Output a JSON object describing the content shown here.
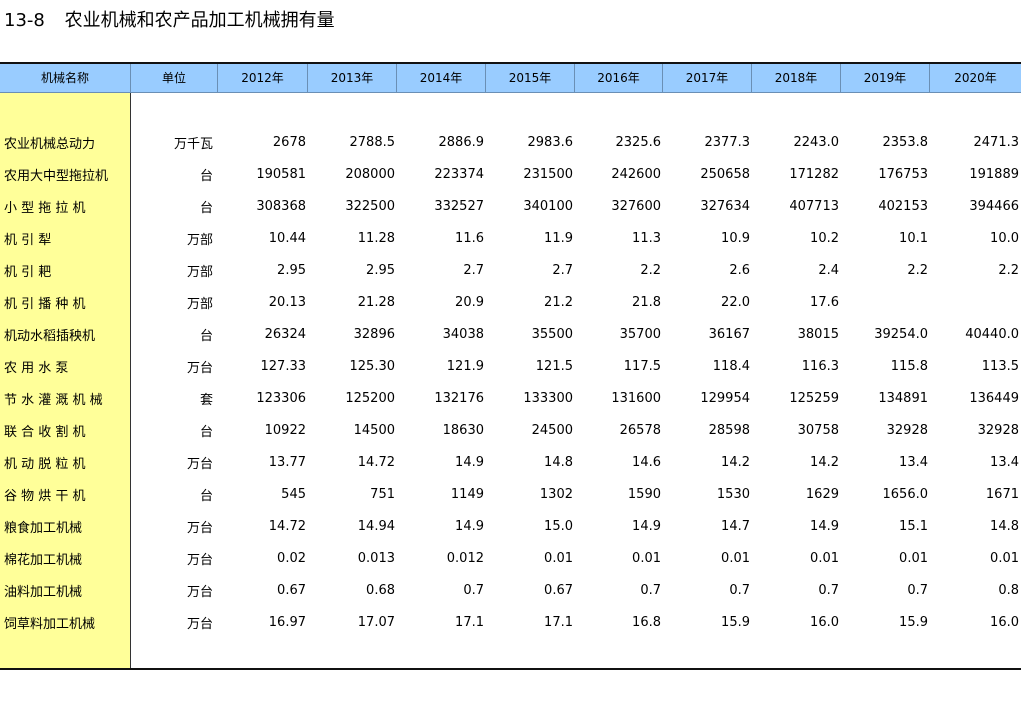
{
  "title": {
    "number": "13-8",
    "text": "农业机械和农产品加工机械拥有量"
  },
  "columns": [
    "机械名称",
    "单位",
    "2012年",
    "2013年",
    "2014年",
    "2015年",
    "2016年",
    "2017年",
    "2018年",
    "2019年",
    "2020年"
  ],
  "rows": [
    {
      "name": "农业机械总动力",
      "unit": "万千瓦",
      "values": [
        "2678",
        "2788.5",
        "2886.9",
        "2983.6",
        "2325.6",
        "2377.3",
        "2243.0",
        "2353.8",
        "2471.3"
      ]
    },
    {
      "name": "农用大中型拖拉机",
      "unit": "台",
      "values": [
        "190581",
        "208000",
        "223374",
        "231500",
        "242600",
        "250658",
        "171282",
        "176753",
        "191889"
      ]
    },
    {
      "name": "小 型 拖 拉 机",
      "unit": "台",
      "values": [
        "308368",
        "322500",
        "332527",
        "340100",
        "327600",
        "327634",
        "407713",
        "402153",
        "394466"
      ]
    },
    {
      "name": "机   引   犁",
      "unit": "万部",
      "values": [
        "10.44",
        "11.28",
        "11.6",
        "11.9",
        "11.3",
        "10.9",
        "10.2",
        "10.1",
        "10.0"
      ]
    },
    {
      "name": "机   引   耙",
      "unit": "万部",
      "values": [
        "2.95",
        "2.95",
        "2.7",
        "2.7",
        "2.2",
        "2.6",
        "2.4",
        "2.2",
        "2.2"
      ]
    },
    {
      "name": "机 引 播 种 机",
      "unit": "万部",
      "values": [
        "20.13",
        "21.28",
        "20.9",
        "21.2",
        "21.8",
        "22.0",
        "17.6",
        "",
        ""
      ]
    },
    {
      "name": "机动水稻插秧机",
      "unit": "台",
      "values": [
        "26324",
        "32896",
        "34038",
        "35500",
        "35700",
        "36167",
        "38015",
        "39254.0",
        "40440.0"
      ]
    },
    {
      "name": "农  用  水  泵",
      "unit": "万台",
      "values": [
        "127.33",
        "125.30",
        "121.9",
        "121.5",
        "117.5",
        "118.4",
        "116.3",
        "115.8",
        "113.5"
      ]
    },
    {
      "name": "节 水 灌 溉 机 械",
      "unit": "套",
      "values": [
        "123306",
        "125200",
        "132176",
        "133300",
        "131600",
        "129954",
        "125259",
        "134891",
        "136449"
      ]
    },
    {
      "name": "联 合 收 割 机",
      "unit": "台",
      "values": [
        "10922",
        "14500",
        "18630",
        "24500",
        "26578",
        "28598",
        "30758",
        "32928",
        "32928"
      ]
    },
    {
      "name": "机 动 脱 粒 机",
      "unit": "万台",
      "values": [
        "13.77",
        "14.72",
        "14.9",
        "14.8",
        "14.6",
        "14.2",
        "14.2",
        "13.4",
        "13.4"
      ]
    },
    {
      "name": "谷 物 烘 干 机",
      "unit": "台",
      "values": [
        "545",
        "751",
        "1149",
        "1302",
        "1590",
        "1530",
        "1629",
        "1656.0",
        "1671"
      ]
    },
    {
      "name": "粮食加工机械",
      "unit": "万台",
      "values": [
        "14.72",
        "14.94",
        "14.9",
        "15.0",
        "14.9",
        "14.7",
        "14.9",
        "15.1",
        "14.8"
      ]
    },
    {
      "name": "棉花加工机械",
      "unit": "万台",
      "values": [
        "0.02",
        "0.013",
        "0.012",
        "0.01",
        "0.01",
        "0.01",
        "0.01",
        "0.01",
        "0.01"
      ]
    },
    {
      "name": "油料加工机械",
      "unit": "万台",
      "values": [
        "0.67",
        "0.68",
        "0.7",
        "0.67",
        "0.7",
        "0.7",
        "0.7",
        "0.7",
        "0.8"
      ]
    },
    {
      "name": "饲草料加工机械",
      "unit": "万台",
      "values": [
        "16.97",
        "17.07",
        "17.1",
        "17.1",
        "16.8",
        "15.9",
        "16.0",
        "15.9",
        "16.0"
      ]
    }
  ]
}
